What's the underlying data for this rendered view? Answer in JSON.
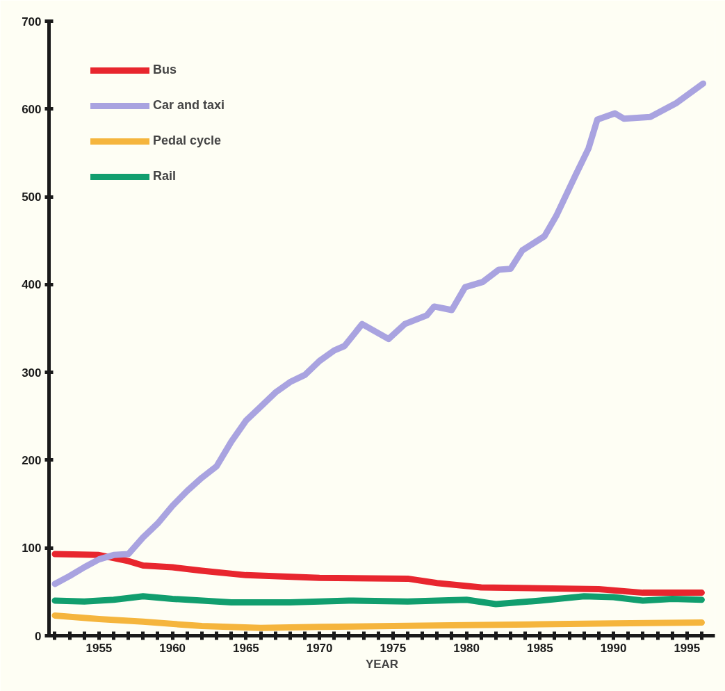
{
  "chart_data": {
    "type": "line",
    "xlabel": "YEAR",
    "xlim": [
      1951.6,
      1996.9
    ],
    "ylim": [
      0,
      700
    ],
    "xticks": [
      {
        "value": 1952,
        "label": null
      },
      {
        "value": 1953,
        "label": null
      },
      {
        "value": 1954,
        "label": null
      },
      1955,
      {
        "value": 1956,
        "label": null
      },
      {
        "value": 1957,
        "label": null
      },
      {
        "value": 1958,
        "label": null
      },
      {
        "value": 1959,
        "label": null
      },
      1960,
      {
        "value": 1961,
        "label": null
      },
      {
        "value": 1962,
        "label": null
      },
      {
        "value": 1963,
        "label": null
      },
      {
        "value": 1964,
        "label": null
      },
      1965,
      {
        "value": 1966,
        "label": null
      },
      {
        "value": 1967,
        "label": null
      },
      {
        "value": 1968,
        "label": null
      },
      {
        "value": 1969,
        "label": null
      },
      1970,
      {
        "value": 1971,
        "label": null
      },
      {
        "value": 1972,
        "label": null
      },
      {
        "value": 1973,
        "label": null
      },
      {
        "value": 1974,
        "label": null
      },
      1975,
      {
        "value": 1976,
        "label": null
      },
      {
        "value": 1977,
        "label": null
      },
      {
        "value": 1978,
        "label": null
      },
      {
        "value": 1979,
        "label": null
      },
      1980,
      {
        "value": 1981,
        "label": null
      },
      {
        "value": 1982,
        "label": null
      },
      {
        "value": 1983,
        "label": null
      },
      {
        "value": 1984,
        "label": null
      },
      1985,
      {
        "value": 1986,
        "label": null
      },
      {
        "value": 1987,
        "label": null
      },
      {
        "value": 1988,
        "label": null
      },
      {
        "value": 1989,
        "label": null
      },
      1990,
      {
        "value": 1991,
        "label": null
      },
      {
        "value": 1992,
        "label": null
      },
      {
        "value": 1993,
        "label": null
      },
      {
        "value": 1994,
        "label": null
      },
      1995,
      {
        "value": 1996,
        "label": null
      }
    ],
    "yticks": [
      0,
      100,
      200,
      300,
      400,
      500,
      600,
      700
    ],
    "grid": false,
    "legend": "top left",
    "marker": "none",
    "line_style": "solid",
    "series": [
      {
        "name": "Bus",
        "color": "#e8262e",
        "x": [
          1952,
          1955,
          1957,
          1958,
          1960,
          1962,
          1965,
          1970,
          1976,
          1978,
          1981,
          1985,
          1989,
          1992,
          1996
        ],
        "values": [
          93,
          92,
          85,
          80,
          78,
          74,
          69,
          66,
          65,
          60,
          55,
          54,
          53,
          49,
          49
        ]
      },
      {
        "name": "Car and taxi",
        "color": "#a9a3e0",
        "x": [
          1952,
          1953,
          1954,
          1955,
          1956,
          1957,
          1958,
          1959,
          1960,
          1961,
          1962,
          1963,
          1964,
          1965,
          1966,
          1967,
          1968,
          1969,
          1970,
          1971,
          1971.7,
          1972.9,
          1974.7,
          1975.8,
          1977.3,
          1977.8,
          1979.0,
          1979.9,
          1981.1,
          1982.2,
          1983.0,
          1983.8,
          1985.3,
          1986.1,
          1987.4,
          1988.3,
          1988.9,
          1990.1,
          1990.7,
          1992.5,
          1994.3,
          1996.1
        ],
        "values": [
          59,
          68,
          78,
          87,
          92,
          93,
          112,
          128,
          148,
          165,
          180,
          193,
          221,
          245,
          261,
          277,
          289,
          297,
          313,
          325,
          330,
          355,
          338,
          355,
          365,
          375,
          371,
          397,
          403,
          417,
          418,
          439,
          455,
          478,
          524,
          555,
          588,
          595,
          589,
          591,
          607,
          629
        ]
      },
      {
        "name": "Pedal cycle",
        "color": "#f5b53d",
        "x": [
          1952,
          1955,
          1958,
          1962,
          1966,
          1970,
          1975,
          1980,
          1985,
          1990,
          1996
        ],
        "values": [
          23,
          19,
          16,
          11,
          9,
          10,
          11,
          12,
          13,
          14,
          15
        ]
      },
      {
        "name": "Rail",
        "color": "#119e6e",
        "x": [
          1952,
          1954,
          1956,
          1958,
          1960,
          1964,
          1968,
          1972,
          1976,
          1980,
          1982,
          1985,
          1988,
          1990,
          1992,
          1994,
          1996
        ],
        "values": [
          40,
          39,
          41,
          45,
          42,
          38,
          38,
          40,
          39,
          41,
          36,
          40,
          45,
          44,
          40,
          42,
          41
        ]
      }
    ]
  }
}
